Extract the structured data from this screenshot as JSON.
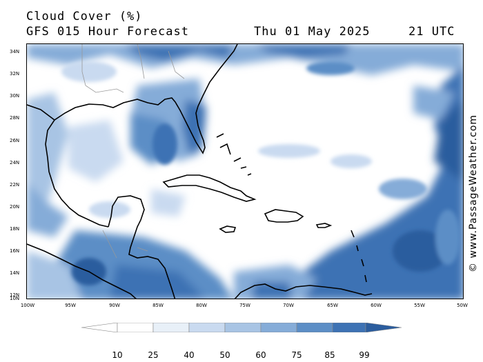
{
  "title": "Cloud Cover (%)",
  "subtitle": "GFS 015 Hour Forecast",
  "date": "Thu 01 May 2025",
  "hour": "21 UTC",
  "copyright": "© www.PassageWeather.com",
  "lat_labels": [
    "34N",
    "32N",
    "30N",
    "28N",
    "26N",
    "24N",
    "22N",
    "20N",
    "18N",
    "16N",
    "14N",
    "12N",
    "10N"
  ],
  "lon_labels": [
    "100W",
    "95W",
    "90W",
    "85W",
    "80W",
    "75W",
    "70W",
    "65W",
    "60W",
    "55W",
    "50W"
  ],
  "colorbar": {
    "levels": [
      "10",
      "25",
      "40",
      "50",
      "60",
      "75",
      "85",
      "99"
    ],
    "colors": [
      "#ffffff",
      "#e8f0f8",
      "#c9daf0",
      "#a8c4e4",
      "#85acd8",
      "#5c8ec6",
      "#3d72b4",
      "#2b5d9e"
    ]
  },
  "colors": {
    "cloud_dark": "#3a6aae",
    "cloud_mid": "#7ea6d6",
    "cloud_light": "#c6d8ee",
    "coast": "#000000",
    "border": "#999999"
  }
}
